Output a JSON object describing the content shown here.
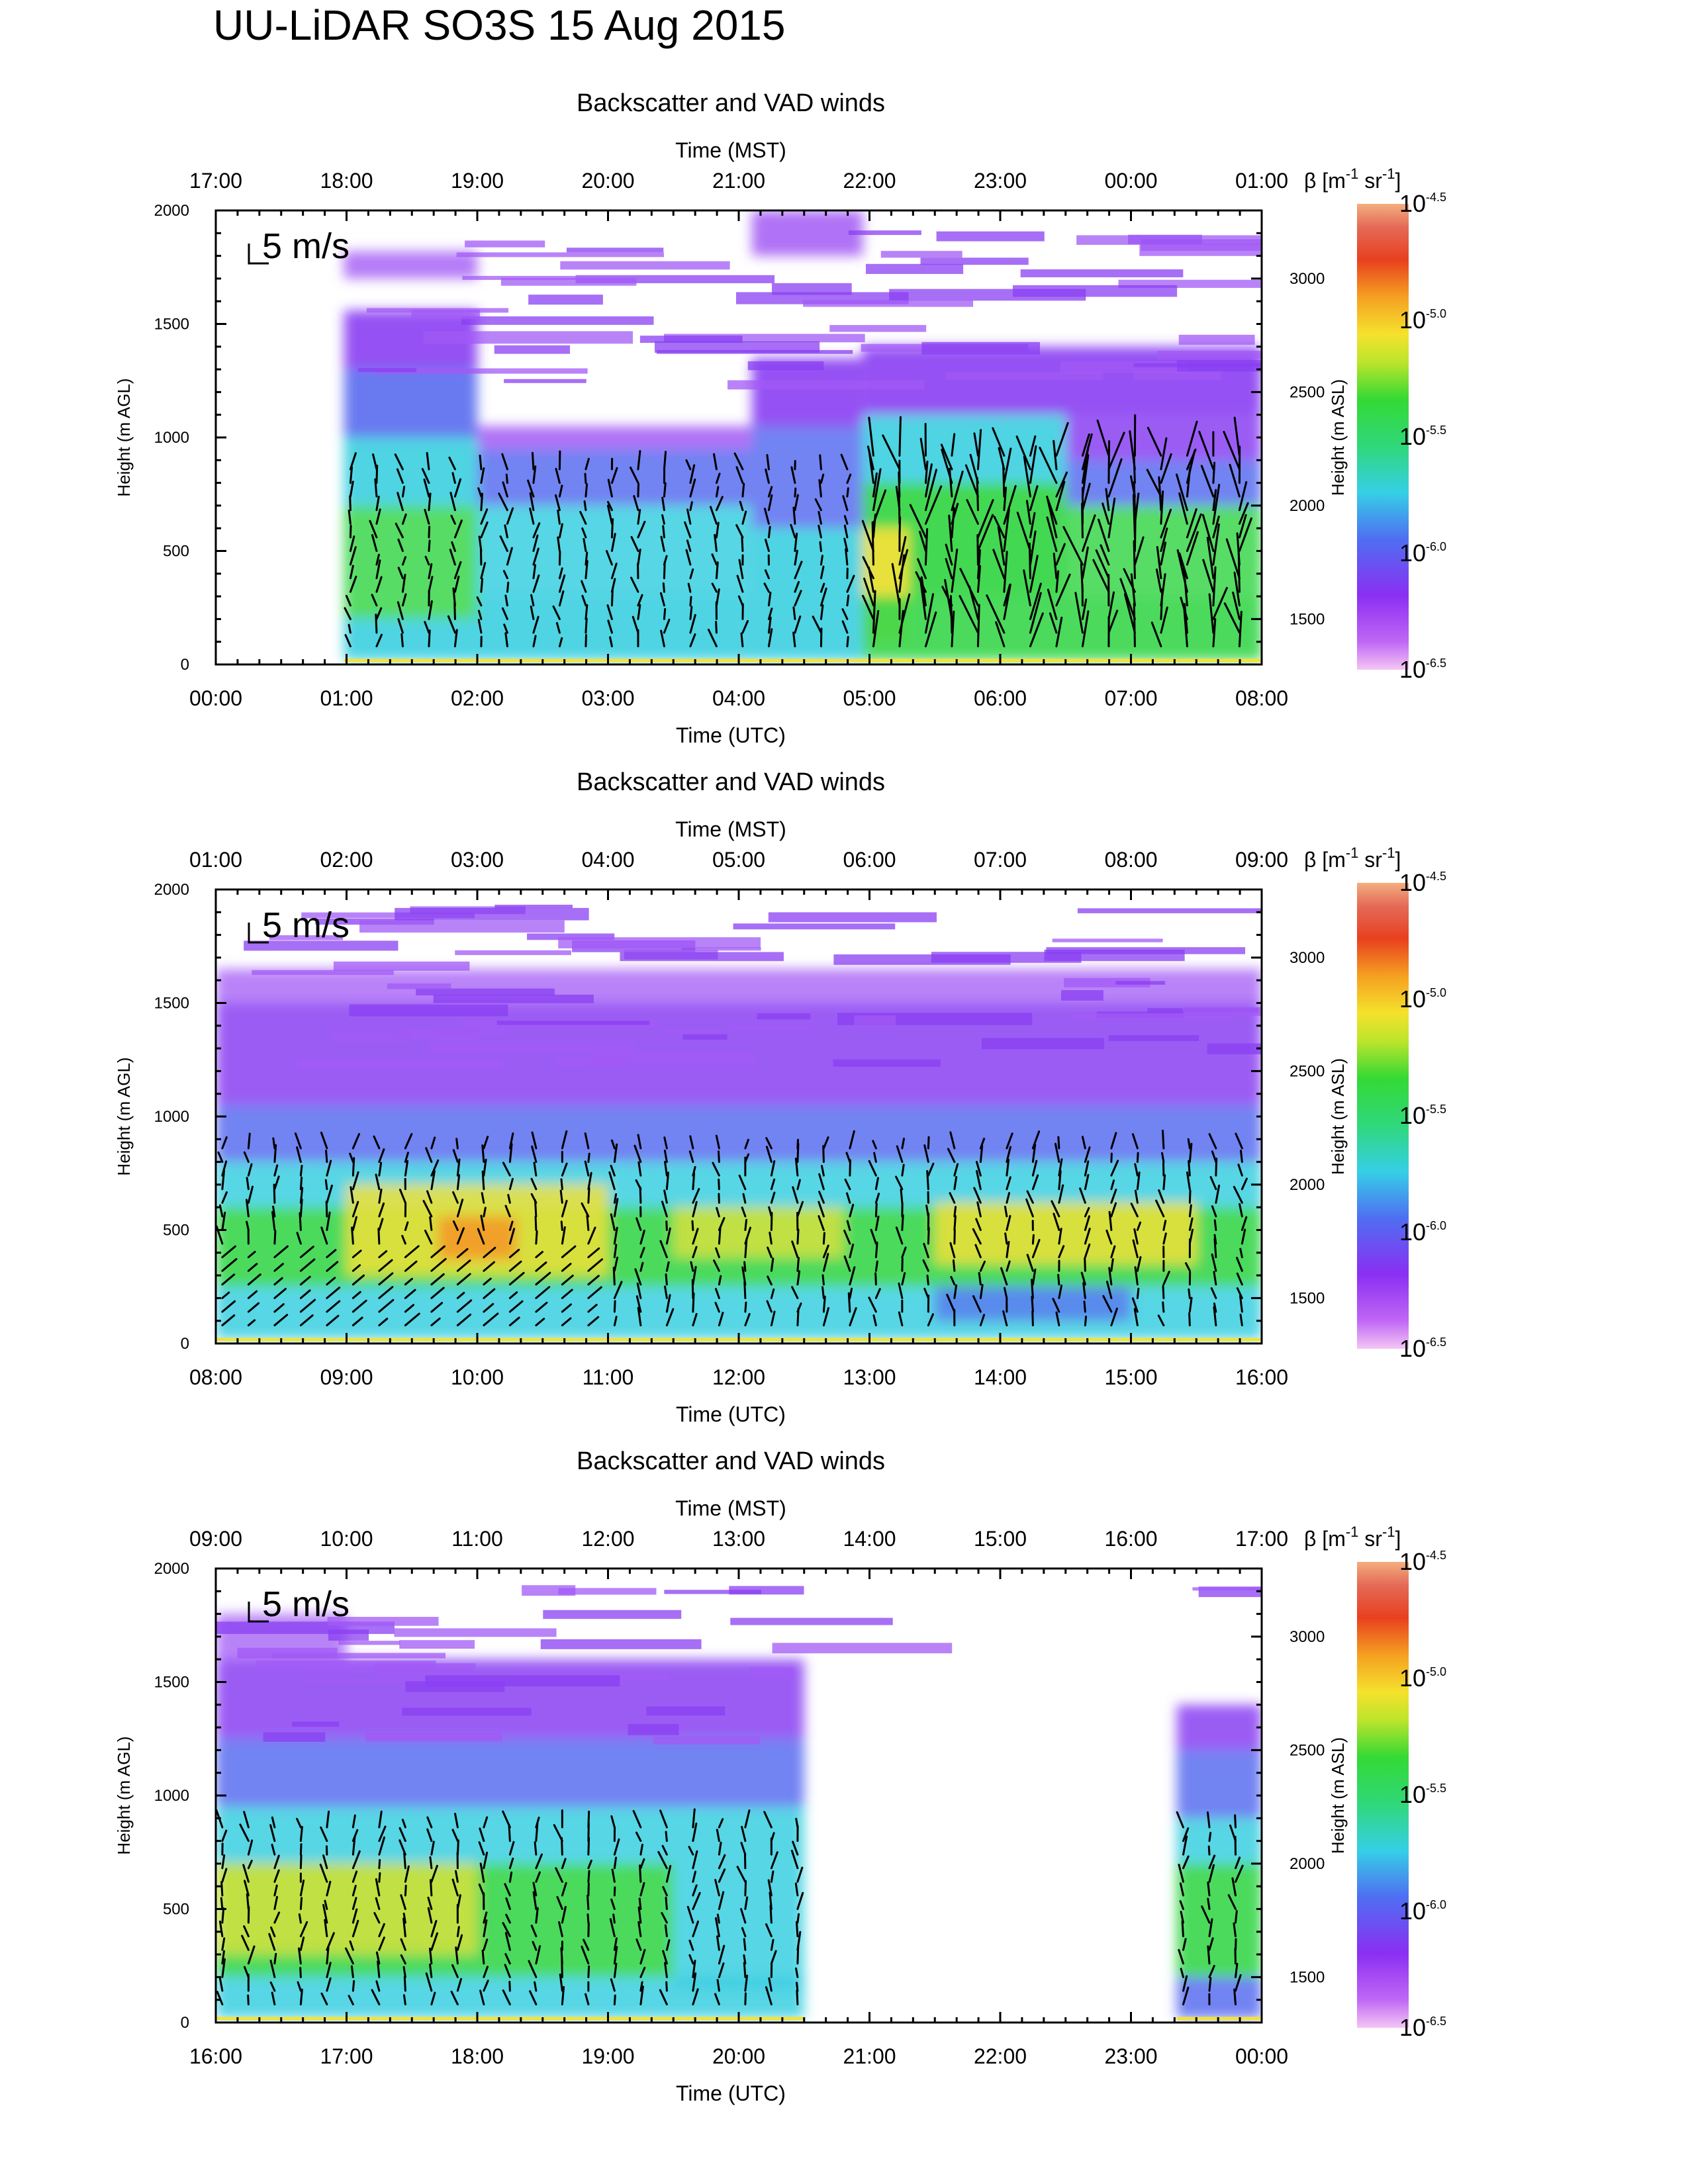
{
  "title": "UU-LiDAR SO3S 15 Aug 2015",
  "colors": {
    "white": "#ffffff",
    "violet": "#a25af5",
    "purple": "#8a3ff2",
    "blue": "#5a6cf0",
    "cyan": "#3bcfe0",
    "green": "#39d64a",
    "yellow": "#f2e23a",
    "orange": "#f49a28",
    "red": "#e0431f",
    "arrow": "#000000"
  },
  "chart_data": [
    {
      "type": "heatmap",
      "title": "Backscatter and VAD winds",
      "xlabel": "Time (UTC)",
      "x2label": "Time (MST)",
      "ylabel": "Height (m AGL)",
      "y2label": "Height (m ASL)",
      "ylim": [
        0,
        2000
      ],
      "y2lim": [
        1300,
        3300
      ],
      "xticks": [
        "00:00",
        "01:00",
        "02:00",
        "03:00",
        "04:00",
        "05:00",
        "06:00",
        "07:00",
        "08:00"
      ],
      "x2ticks": [
        "17:00",
        "18:00",
        "19:00",
        "20:00",
        "21:00",
        "22:00",
        "23:00",
        "00:00",
        "01:00"
      ],
      "yticks": [
        0,
        500,
        1000,
        1500,
        2000
      ],
      "y2ticks": [
        1500,
        2000,
        2500,
        3000
      ],
      "wind_scale_label": "5 m/s",
      "data_start_hour": 0.98,
      "data_end_hour": 8.0,
      "colorbar": {
        "label": "β [m⁻¹ sr⁻¹]",
        "label_main": "β [m",
        "label_sup1": "-1",
        "label_mid": " sr",
        "label_sup2": "-1",
        "label_end": "]",
        "ticks": [
          {
            "base": "10",
            "exp": "-4.5"
          },
          {
            "base": "10",
            "exp": "-5.0"
          },
          {
            "base": "10",
            "exp": "-5.5"
          },
          {
            "base": "10",
            "exp": "-6.0"
          },
          {
            "base": "10",
            "exp": "-6.5"
          }
        ]
      }
    },
    {
      "type": "heatmap",
      "title": "Backscatter and VAD winds",
      "xlabel": "Time (UTC)",
      "x2label": "Time (MST)",
      "ylabel": "Height (m AGL)",
      "y2label": "Height (m ASL)",
      "ylim": [
        0,
        2000
      ],
      "y2lim": [
        1300,
        3300
      ],
      "xticks": [
        "08:00",
        "09:00",
        "10:00",
        "11:00",
        "12:00",
        "13:00",
        "14:00",
        "15:00",
        "16:00"
      ],
      "x2ticks": [
        "01:00",
        "02:00",
        "03:00",
        "04:00",
        "05:00",
        "06:00",
        "07:00",
        "08:00",
        "09:00"
      ],
      "yticks": [
        0,
        500,
        1000,
        1500,
        2000
      ],
      "y2ticks": [
        1500,
        2000,
        2500,
        3000
      ],
      "wind_scale_label": "5 m/s",
      "data_start_hour": 8.0,
      "data_end_hour": 16.0,
      "colorbar": {
        "label": "β [m⁻¹ sr⁻¹]",
        "label_main": "β [m",
        "label_sup1": "-1",
        "label_mid": " sr",
        "label_sup2": "-1",
        "label_end": "]",
        "ticks": [
          {
            "base": "10",
            "exp": "-4.5"
          },
          {
            "base": "10",
            "exp": "-5.0"
          },
          {
            "base": "10",
            "exp": "-5.5"
          },
          {
            "base": "10",
            "exp": "-6.0"
          },
          {
            "base": "10",
            "exp": "-6.5"
          }
        ]
      }
    },
    {
      "type": "heatmap",
      "title": "Backscatter and VAD winds",
      "xlabel": "Time (UTC)",
      "x2label": "Time (MST)",
      "ylabel": "Height (m AGL)",
      "y2label": "Height (m ASL)",
      "ylim": [
        0,
        2000
      ],
      "y2lim": [
        1300,
        3300
      ],
      "xticks": [
        "16:00",
        "17:00",
        "18:00",
        "19:00",
        "20:00",
        "21:00",
        "22:00",
        "23:00",
        "00:00"
      ],
      "x2ticks": [
        "09:00",
        "10:00",
        "11:00",
        "12:00",
        "13:00",
        "14:00",
        "15:00",
        "16:00",
        "17:00"
      ],
      "yticks": [
        0,
        500,
        1000,
        1500,
        2000
      ],
      "y2ticks": [
        1500,
        2000,
        2500,
        3000
      ],
      "wind_scale_label": "5 m/s",
      "data_start_hour": 16.0,
      "data_end_hour": 20.5,
      "data2_start_hour": 23.35,
      "data2_end_hour": 24.0,
      "colorbar": {
        "label": "β [m⁻¹ sr⁻¹]",
        "label_main": "β [m",
        "label_sup1": "-1",
        "label_mid": " sr",
        "label_sup2": "-1",
        "label_end": "]",
        "ticks": [
          {
            "base": "10",
            "exp": "-4.5"
          },
          {
            "base": "10",
            "exp": "-5.0"
          },
          {
            "base": "10",
            "exp": "-5.5"
          },
          {
            "base": "10",
            "exp": "-6.0"
          },
          {
            "base": "10",
            "exp": "-6.5"
          }
        ]
      }
    }
  ]
}
